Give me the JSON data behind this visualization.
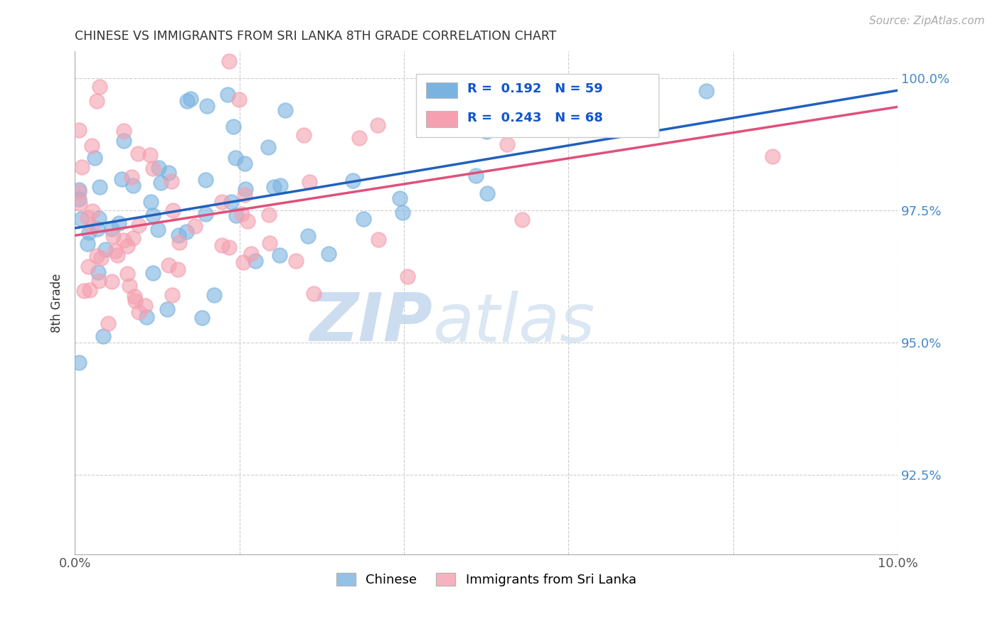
{
  "title": "CHINESE VS IMMIGRANTS FROM SRI LANKA 8TH GRADE CORRELATION CHART",
  "source": "Source: ZipAtlas.com",
  "ylabel": "8th Grade",
  "xlim": [
    0.0,
    0.1
  ],
  "ylim": [
    0.91,
    1.005
  ],
  "y_ticks": [
    0.925,
    0.95,
    0.975,
    1.0
  ],
  "y_tick_labels": [
    "92.5%",
    "95.0%",
    "97.5%",
    "100.0%"
  ],
  "legend_label1": "Chinese",
  "legend_label2": "Immigrants from Sri Lanka",
  "R1": 0.192,
  "N1": 59,
  "R2": 0.243,
  "N2": 68,
  "color_blue": "#7ab3e0",
  "color_pink": "#f4a0b0",
  "line_color_blue": "#2060c0",
  "line_color_pink": "#e0507a",
  "watermark_zip": "ZIP",
  "watermark_atlas": "atlas"
}
